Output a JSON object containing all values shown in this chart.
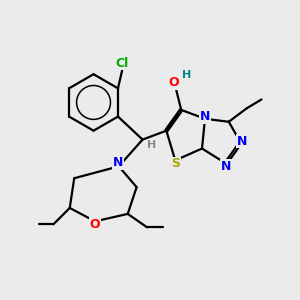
{
  "background_color": "#ebebeb",
  "bond_color": "#000000",
  "bond_width": 1.6,
  "atom_colors": {
    "Cl": "#00aa00",
    "O": "#ff0000",
    "H_teal": "#008888",
    "N": "#0000ee",
    "S": "#aaaa00",
    "H_gray": "#888888"
  },
  "font_size_atom": 9,
  "font_size_small": 8
}
